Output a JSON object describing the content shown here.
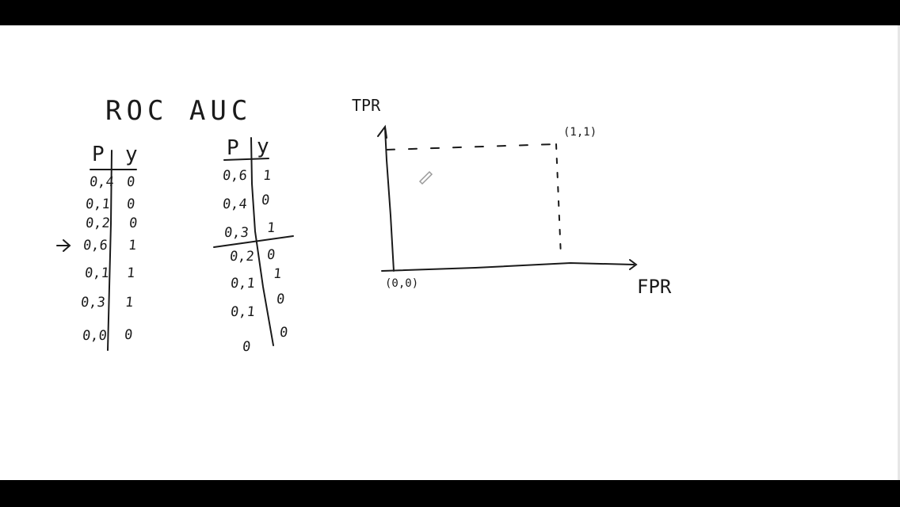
{
  "title": "ROC AUC",
  "table1": {
    "headers": [
      "P",
      "y"
    ],
    "rows": [
      {
        "p": "0,4",
        "y": "0"
      },
      {
        "p": "0,1",
        "y": "0"
      },
      {
        "p": "0,2",
        "y": "0"
      },
      {
        "p": "0,6",
        "y": "1"
      },
      {
        "p": "0,1",
        "y": "1"
      },
      {
        "p": "0,3",
        "y": "1"
      },
      {
        "p": "0,0",
        "y": "0"
      }
    ]
  },
  "table2": {
    "headers": [
      "P",
      "y"
    ],
    "rows": [
      {
        "p": "0,6",
        "y": "1"
      },
      {
        "p": "0,4",
        "y": "0"
      },
      {
        "p": "0,3",
        "y": "1"
      },
      {
        "p": "0,2",
        "y": "0"
      },
      {
        "p": "0,1",
        "y": "1"
      },
      {
        "p": "0,1",
        "y": "0"
      },
      {
        "p": "0",
        "y": "0"
      }
    ]
  },
  "plot": {
    "y_label": "TPR",
    "x_label": "FPR",
    "origin_label": "(0,0)",
    "corner_label": "(1,1)"
  }
}
